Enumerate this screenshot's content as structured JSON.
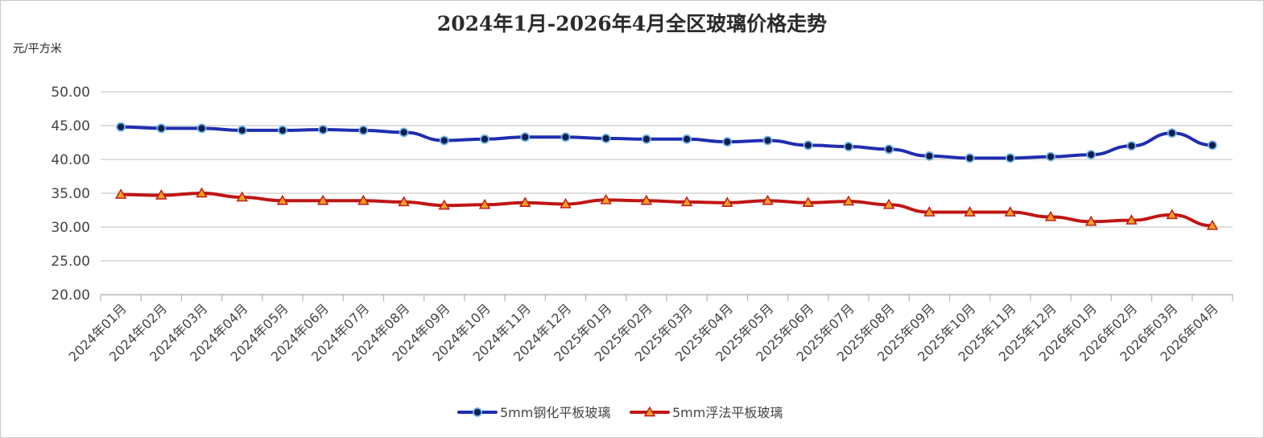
{
  "chart_data": {
    "type": "line",
    "title": "2024年1月-2026年4月全区玻璃价格走势",
    "ylabel": "元/平方米",
    "xlabel": "",
    "ylim": [
      20,
      50
    ],
    "yticks": [
      "20.00",
      "25.00",
      "30.00",
      "35.00",
      "40.00",
      "45.00",
      "50.00"
    ],
    "categories": [
      "2024年01月",
      "2024年02月",
      "2024年03月",
      "2024年04月",
      "2024年05月",
      "2024年06月",
      "2024年07月",
      "2024年08月",
      "2024年09月",
      "2024年10月",
      "2024年11月",
      "2024年12月",
      "2025年01月",
      "2025年02月",
      "2025年03月",
      "2025年04月",
      "2025年05月",
      "2025年06月",
      "2025年07月",
      "2025年08月",
      "2025年09月",
      "2025年10月",
      "2025年11月",
      "2025年12月",
      "2026年01月",
      "2026年02月",
      "2026年03月",
      "2026年04月"
    ],
    "series": [
      {
        "name": "5mm钢化平板玻璃",
        "color": "#1f2db0",
        "marker": "circle",
        "values": [
          44.8,
          44.6,
          44.6,
          44.3,
          44.3,
          44.4,
          44.3,
          44.0,
          42.8,
          43.0,
          43.3,
          43.3,
          43.1,
          43.0,
          43.0,
          42.6,
          42.8,
          42.1,
          41.9,
          41.5,
          40.5,
          40.2,
          40.2,
          40.4,
          40.7,
          42.0,
          43.9,
          42.1
        ]
      },
      {
        "name": "5mm浮法平板玻璃",
        "color": "#c01515",
        "marker": "triangle",
        "values": [
          34.8,
          34.7,
          35.0,
          34.4,
          33.9,
          33.9,
          33.9,
          33.7,
          33.2,
          33.3,
          33.6,
          33.4,
          34.0,
          33.9,
          33.7,
          33.6,
          33.9,
          33.6,
          33.8,
          33.3,
          32.2,
          32.2,
          32.2,
          31.5,
          30.8,
          31.0,
          31.8,
          30.2
        ]
      }
    ],
    "grid": true,
    "legend_position": "bottom-center"
  }
}
